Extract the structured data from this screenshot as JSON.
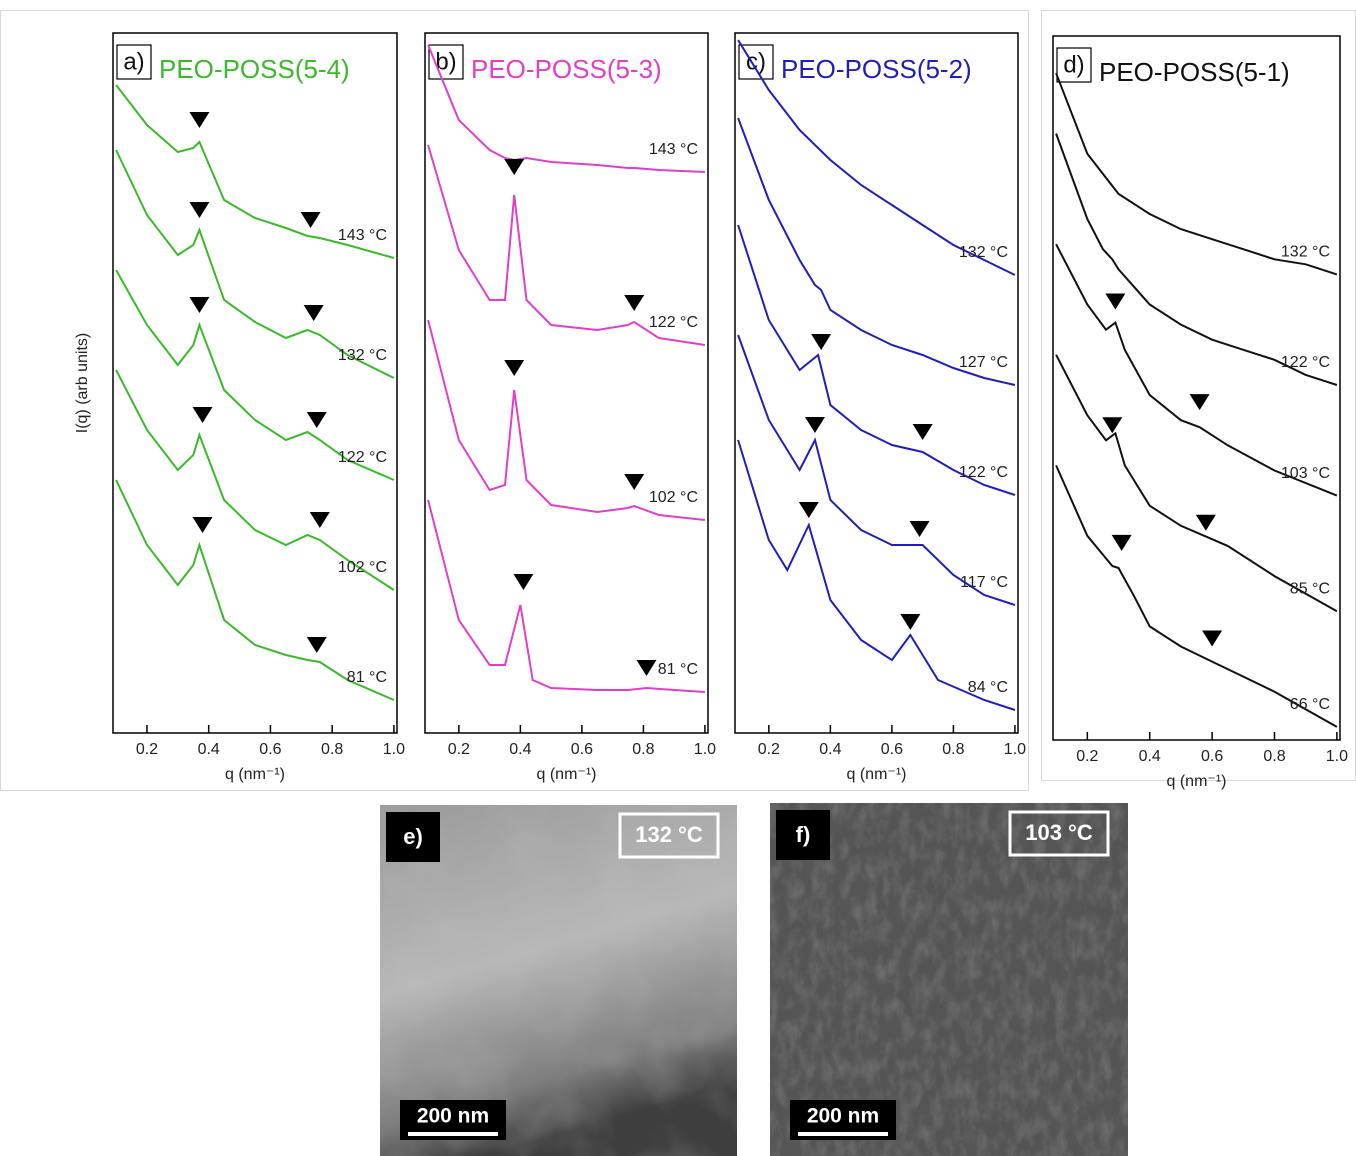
{
  "chart_data": [
    {
      "type": "line",
      "panel_label": "a)",
      "title": "PEO-POSS(5-4)",
      "x_label": "q (nm⁻¹)",
      "y_label": "I(q) (arb units)",
      "xlim": [
        0.09,
        1.01
      ],
      "xticks": [
        0.2,
        0.4,
        0.6,
        0.8,
        {
          "value": 1,
          "label": "1.0"
        }
      ],
      "ylim": [
        0,
        700
      ],
      "series": [
        {
          "name": "143 °C",
          "color": "#3cb82c",
          "x": [
            0.1,
            0.2,
            0.3,
            0.35,
            0.37,
            0.45,
            0.55,
            0.65,
            0.72,
            0.76,
            0.85,
            1.0
          ],
          "values": [
            648,
            608,
            581,
            585,
            591,
            533,
            515,
            505,
            497,
            495,
            488,
            475
          ],
          "markers": {
            "x": [
              0.37,
              0.73
            ],
            "y": [
              605,
              505
            ]
          }
        },
        {
          "name": "132 °C",
          "color": "#3cb82c",
          "x": [
            0.1,
            0.2,
            0.3,
            0.35,
            0.37,
            0.45,
            0.55,
            0.65,
            0.72,
            0.76,
            0.85,
            1.0
          ],
          "values": [
            583,
            518,
            478,
            488,
            503,
            433,
            411,
            395,
            403,
            398,
            378,
            355
          ],
          "markers": {
            "x": [
              0.37,
              0.74
            ],
            "y": [
              515,
              412
            ]
          }
        },
        {
          "name": "122 °C",
          "color": "#3cb82c",
          "x": [
            0.1,
            0.2,
            0.3,
            0.35,
            0.37,
            0.45,
            0.55,
            0.65,
            0.72,
            0.76,
            0.85,
            1.0
          ],
          "values": [
            463,
            408,
            368,
            388,
            408,
            343,
            313,
            293,
            301,
            293,
            273,
            253
          ],
          "markers": {
            "x": [
              0.37,
              0.75
            ],
            "y": [
              420,
              305
            ]
          }
        },
        {
          "name": "102 °C",
          "color": "#3cb82c",
          "x": [
            0.1,
            0.2,
            0.3,
            0.35,
            0.37,
            0.45,
            0.55,
            0.65,
            0.72,
            0.76,
            0.85,
            1.0
          ],
          "values": [
            363,
            303,
            263,
            278,
            298,
            233,
            203,
            188,
            198,
            193,
            173,
            143
          ],
          "markers": {
            "x": [
              0.38,
              0.76
            ],
            "y": [
              310,
              205
            ]
          }
        },
        {
          "name": "81 °C",
          "color": "#3cb82c",
          "x": [
            0.1,
            0.2,
            0.3,
            0.35,
            0.37,
            0.45,
            0.55,
            0.65,
            0.72,
            0.76,
            0.85,
            1.0
          ],
          "values": [
            253,
            188,
            148,
            168,
            188,
            113,
            88,
            78,
            73,
            71,
            53,
            33
          ],
          "markers": {
            "x": [
              0.38,
              0.75
            ],
            "y": [
              200,
              80
            ]
          }
        }
      ]
    },
    {
      "type": "line",
      "panel_label": "b)",
      "title": "PEO-POSS(5-3)",
      "x_label": "q (nm⁻¹)",
      "xlim": [
        0.09,
        1.01
      ],
      "xticks": [
        0.2,
        0.4,
        0.6,
        0.8,
        {
          "value": 1,
          "label": "1.0"
        }
      ],
      "ylim": [
        0,
        700
      ],
      "series": [
        {
          "name": "143 °C",
          "color": "#e040c8",
          "x": [
            0.1,
            0.2,
            0.3,
            0.35,
            0.38,
            0.42,
            0.5,
            0.65,
            0.75,
            0.77,
            0.85,
            1.0
          ],
          "values": [
            688,
            613,
            583,
            575,
            573,
            575,
            571,
            568,
            565,
            565,
            563,
            561
          ]
        },
        {
          "name": "122 °C",
          "color": "#e040c8",
          "x": [
            0.1,
            0.2,
            0.3,
            0.35,
            0.38,
            0.42,
            0.5,
            0.65,
            0.75,
            0.77,
            0.85,
            1.0
          ],
          "values": [
            588,
            483,
            433,
            433,
            538,
            433,
            408,
            403,
            408,
            411,
            395,
            388
          ],
          "markers": {
            "x": [
              0.38,
              0.77
            ],
            "y": [
              558,
              422
            ]
          }
        },
        {
          "name": "102 °C",
          "color": "#e040c8",
          "x": [
            0.1,
            0.2,
            0.3,
            0.35,
            0.38,
            0.42,
            0.5,
            0.65,
            0.75,
            0.77,
            0.85,
            1.0
          ],
          "values": [
            413,
            293,
            243,
            248,
            343,
            253,
            228,
            221,
            225,
            227,
            218,
            213
          ],
          "markers": {
            "x": [
              0.38,
              0.77
            ],
            "y": [
              357,
              243
            ]
          }
        },
        {
          "name": "81 °C",
          "color": "#e040c8",
          "x": [
            0.1,
            0.2,
            0.3,
            0.35,
            0.4,
            0.44,
            0.5,
            0.65,
            0.75,
            0.81,
            0.9,
            1.0
          ],
          "values": [
            233,
            113,
            68,
            68,
            128,
            53,
            45,
            43,
            43,
            45,
            43,
            41
          ],
          "markers": {
            "x": [
              0.41,
              0.81
            ],
            "y": [
              143,
              57
            ]
          }
        }
      ]
    },
    {
      "type": "line",
      "panel_label": "c)",
      "title": "PEO-POSS(5-2)",
      "x_label": "q (nm⁻¹)",
      "xlim": [
        0.09,
        1.01
      ],
      "xticks": [
        0.2,
        0.4,
        0.6,
        0.8,
        {
          "value": 1,
          "label": "1.0"
        }
      ],
      "ylim": [
        0,
        700
      ],
      "series": [
        {
          "name": "132 °C",
          "color": "#1f1fb8",
          "x": [
            0.1,
            0.2,
            0.3,
            0.4,
            0.5,
            0.6,
            0.7,
            0.8,
            0.9,
            1.0
          ],
          "values": [
            693,
            643,
            603,
            573,
            548,
            528,
            508,
            488,
            473,
            458
          ]
        },
        {
          "name": "127 °C",
          "color": "#1f1fb8",
          "x": [
            0.1,
            0.2,
            0.3,
            0.35,
            0.37,
            0.4,
            0.5,
            0.6,
            0.7,
            0.8,
            0.9,
            1.0
          ],
          "values": [
            615,
            533,
            473,
            448,
            443,
            423,
            403,
            388,
            378,
            365,
            355,
            348
          ]
        },
        {
          "name": "122 °C",
          "color": "#1f1fb8",
          "x": [
            0.1,
            0.2,
            0.3,
            0.36,
            0.4,
            0.5,
            0.6,
            0.7,
            0.8,
            0.9,
            1.0
          ],
          "values": [
            508,
            413,
            363,
            378,
            328,
            303,
            288,
            281,
            263,
            248,
            238
          ],
          "markers": {
            "x": [
              0.37,
              0.7
            ],
            "y": [
              383,
              293
            ]
          }
        },
        {
          "name": "117 °C",
          "color": "#1f1fb8",
          "x": [
            0.1,
            0.2,
            0.3,
            0.35,
            0.4,
            0.5,
            0.6,
            0.7,
            0.8,
            0.9,
            1.0
          ],
          "values": [
            398,
            313,
            263,
            293,
            233,
            203,
            188,
            188,
            158,
            138,
            128
          ],
          "markers": {
            "x": [
              0.35,
              0.69
            ],
            "y": [
              300,
              196
            ]
          }
        },
        {
          "name": "84 °C",
          "color": "#1f1fb8",
          "x": [
            0.1,
            0.2,
            0.26,
            0.33,
            0.4,
            0.5,
            0.6,
            0.66,
            0.75,
            0.9,
            1.0
          ],
          "values": [
            293,
            193,
            163,
            208,
            133,
            93,
            73,
            98,
            53,
            33,
            23
          ],
          "markers": {
            "x": [
              0.33,
              0.66
            ],
            "y": [
              215,
              103
            ]
          }
        }
      ]
    },
    {
      "type": "line",
      "panel_label": "d)",
      "title": "PEO-POSS(5-1)",
      "x_label": "q (nm⁻¹)",
      "xlim": [
        0.09,
        1.01
      ],
      "xticks": [
        0.2,
        0.4,
        0.6,
        0.8,
        {
          "value": 1,
          "label": "1.0"
        }
      ],
      "ylim": [
        0,
        700
      ],
      "series": [
        {
          "name": "132 °C",
          "color": "#111111",
          "x": [
            0.1,
            0.2,
            0.3,
            0.4,
            0.5,
            0.6,
            0.7,
            0.8,
            0.9,
            1.0
          ],
          "values": [
            663,
            583,
            543,
            523,
            508,
            498,
            488,
            478,
            473,
            463
          ]
        },
        {
          "name": "122 °C",
          "color": "#111111",
          "x": [
            0.1,
            0.2,
            0.25,
            0.28,
            0.3,
            0.4,
            0.5,
            0.6,
            0.7,
            0.8,
            0.9,
            1.0
          ],
          "values": [
            603,
            518,
            488,
            478,
            468,
            433,
            413,
            398,
            388,
            378,
            363,
            353
          ]
        },
        {
          "name": "103 °C",
          "color": "#111111",
          "x": [
            0.1,
            0.2,
            0.26,
            0.29,
            0.32,
            0.4,
            0.5,
            0.56,
            0.65,
            0.8,
            1.0
          ],
          "values": [
            493,
            433,
            408,
            415,
            388,
            343,
            318,
            311,
            293,
            268,
            243
          ],
          "markers": {
            "x": [
              0.29,
              0.56
            ],
            "y": [
              428,
              328
            ]
          }
        },
        {
          "name": "85 °C",
          "color": "#111111",
          "x": [
            0.1,
            0.2,
            0.26,
            0.29,
            0.32,
            0.4,
            0.5,
            0.56,
            0.65,
            0.8,
            1.0
          ],
          "values": [
            383,
            323,
            298,
            305,
            273,
            233,
            213,
            205,
            193,
            163,
            128
          ],
          "markers": {
            "x": [
              0.28,
              0.58
            ],
            "y": [
              305,
              208
            ]
          }
        },
        {
          "name": "66 °C",
          "color": "#111111",
          "x": [
            0.1,
            0.2,
            0.28,
            0.3,
            0.35,
            0.4,
            0.5,
            0.6,
            0.7,
            0.8,
            1.0
          ],
          "values": [
            273,
            203,
            173,
            171,
            143,
            113,
            93,
            78,
            63,
            48,
            13
          ],
          "markers": {
            "x": [
              0.31,
              0.6
            ],
            "y": [
              188,
              93
            ]
          }
        }
      ]
    }
  ],
  "images": [
    {
      "label": "e)",
      "temperature": "132 °C",
      "scale_bar": "200 nm"
    },
    {
      "label": "f)",
      "temperature": "103 °C",
      "scale_bar": "200 nm"
    }
  ]
}
